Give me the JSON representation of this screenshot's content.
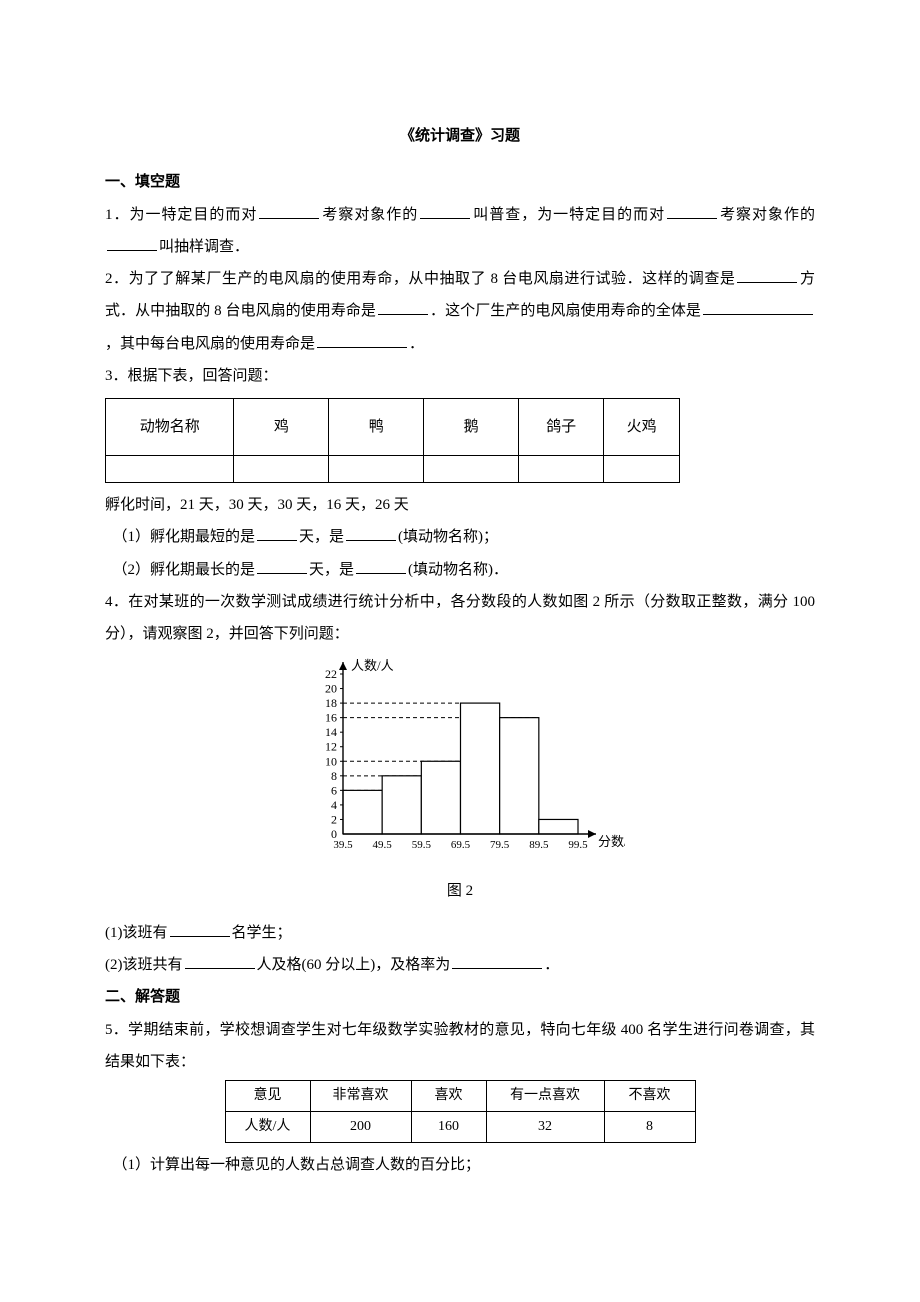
{
  "title": "《统计调查》习题",
  "section1": "一、填空题",
  "q1_a": "1．为一特定目的而对",
  "q1_b": "考察对象作的",
  "q1_c": "叫普查，为一特定目的而对",
  "q1_d": "考察对象作的",
  "q1_e": "叫抽样调查．",
  "q2_a": "2．为了了解某厂生产的电风扇的使用寿命，从中抽取了 8 台电风扇进行试验．这样的调查是",
  "q2_b": "方式．从中抽取的 8 台电风扇的使用寿命是",
  "q2_c": "．这个厂生产的电风扇使用寿命的全体是",
  "q2_d": "，其中每台电风扇的使用寿命是",
  "q2_e": "．",
  "q3_head": "3．根据下表，回答问题：",
  "t1_h": [
    "动物名称",
    "鸡",
    "鸭",
    "鹅",
    "鸽子",
    "火鸡"
  ],
  "q3_incu": "孵化时间，21 天，30 天，30 天，16 天，26 天",
  "q3_1a": "（1）孵化期最短的是",
  "q3_1b": "天，是",
  "q3_1c": "(填动物名称)；",
  "q3_2a": "（2）孵化期最长的是",
  "q3_2b": "天，是",
  "q3_2c": "(填动物名称)．",
  "q4_a": "4．在对某班的一次数学测试成绩进行统计分析中，各分数段的人数如图 2 所示（分数取正整数，满分 100 分），请观察图 2，并回答下列问题：",
  "chart": {
    "ylabel": "人数/人",
    "xlabel": "分数/分",
    "caption": "图 2",
    "yticks": [
      0,
      2,
      4,
      6,
      8,
      10,
      12,
      14,
      16,
      18,
      20,
      22
    ],
    "xticks": [
      "39.5",
      "49.5",
      "59.5",
      "69.5",
      "79.5",
      "89.5",
      "99.5"
    ],
    "bars": [
      6,
      8,
      10,
      18,
      16,
      2
    ],
    "ymax": 22,
    "axis_color": "#000000",
    "bar_fill": "#ffffff",
    "bar_stroke": "#000000",
    "grid_dash": "4,3"
  },
  "q4_1a": "(1)该班有",
  "q4_1b": "名学生；",
  "q4_2a": "(2)该班共有",
  "q4_2b": "人及格(60 分以上)，及格率为",
  "q4_2c": "．",
  "section2": "二、解答题",
  "q5_a": "5．学期结束前，学校想调查学生对七年级数学实验教材的意见，特向七年级 400 名学生进行问卷调查，其结果如下表：",
  "t2_h": [
    "意见",
    "非常喜欢",
    "喜欢",
    "有一点喜欢",
    "不喜欢"
  ],
  "t2_r": [
    "人数/人",
    "200",
    "160",
    "32",
    "8"
  ],
  "q5_1": "（1）计算出每一种意见的人数占总调查人数的百分比；"
}
